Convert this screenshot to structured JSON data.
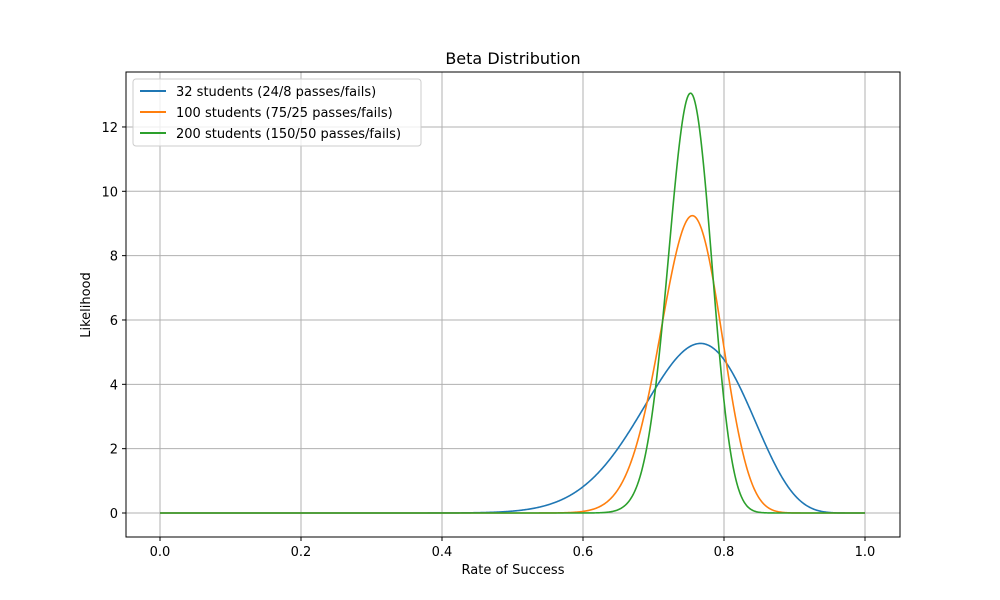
{
  "chart_data": {
    "type": "line",
    "title": "Beta Distribution",
    "xlabel": "Rate of Success",
    "ylabel": "Likelihood",
    "xlim": [
      -0.05,
      1.05
    ],
    "ylim": [
      -0.7,
      13.6
    ],
    "xticks": [
      0.0,
      0.2,
      0.4,
      0.6,
      0.8,
      1.0
    ],
    "xtick_labels": [
      "0.0",
      "0.2",
      "0.4",
      "0.6",
      "0.8",
      "1.0"
    ],
    "yticks": [
      0,
      2,
      4,
      6,
      8,
      10,
      12
    ],
    "ytick_labels": [
      "0",
      "2",
      "4",
      "6",
      "8",
      "10",
      "12"
    ],
    "grid": true,
    "legend_position": "upper left",
    "series": [
      {
        "name": "32 students (24/8 passes/fails)",
        "color": "#1f77b4",
        "alpha": 24,
        "beta": 8,
        "peak_x": 0.767,
        "peak_y": 5.28
      },
      {
        "name": "100 students (75/25 passes/fails)",
        "color": "#ff7f0e",
        "alpha": 75,
        "beta": 25,
        "peak_x": 0.755,
        "peak_y": 9.27
      },
      {
        "name": "200 students (150/50 passes/fails)",
        "color": "#2ca02c",
        "alpha": 150,
        "beta": 50,
        "peak_x": 0.753,
        "peak_y": 13.05
      }
    ]
  }
}
